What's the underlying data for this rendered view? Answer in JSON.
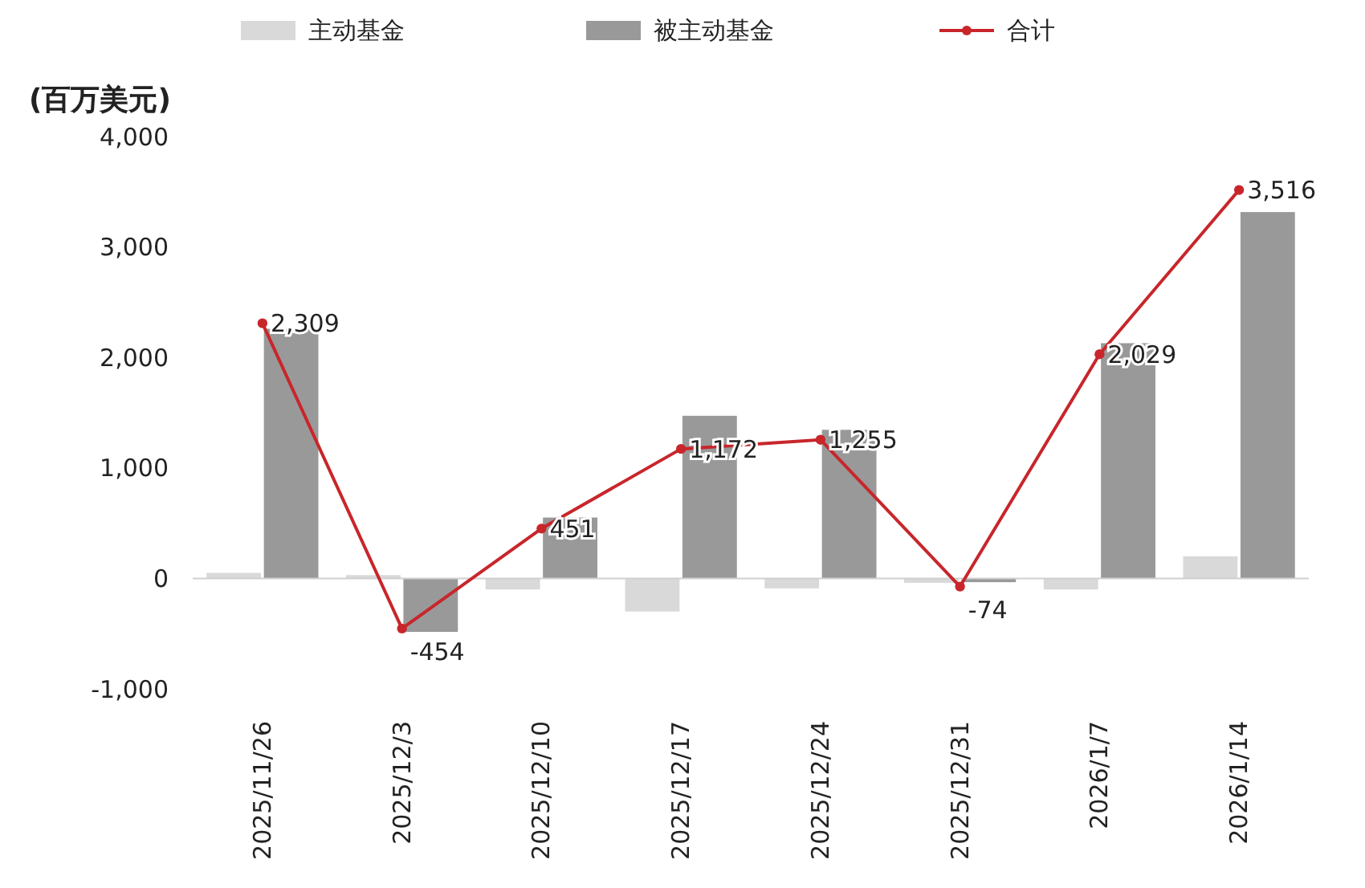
{
  "chart_data": {
    "type": "bar",
    "ylabel": "(百万美元)",
    "categories": [
      "2025/11/26",
      "2025/12/3",
      "2025/12/10",
      "2025/12/17",
      "2025/12/24",
      "2025/12/31",
      "2026/1/7",
      "2026/1/14"
    ],
    "series": [
      {
        "name": "主动基金",
        "color": "#d9d9d9",
        "values": [
          50,
          30,
          -100,
          -300,
          -90,
          -40,
          -100,
          200
        ]
      },
      {
        "name": "被主动基金",
        "color": "#999999",
        "values": [
          2260,
          -484,
          551,
          1472,
          1345,
          -34,
          2129,
          3316
        ]
      },
      {
        "name": "合计",
        "type": "line",
        "color": "#c8262b",
        "values": [
          2309,
          -454,
          451,
          1172,
          1255,
          -74,
          2029,
          3516
        ],
        "value_labels": [
          "2,309",
          "-454",
          "451",
          "1,172",
          "1,255",
          "-74",
          "2,029",
          "3,516"
        ]
      }
    ],
    "ylim": [
      -1000,
      4000
    ],
    "yticks": [
      {
        "value": -1000,
        "label": "-1,000"
      },
      0,
      {
        "value": 1000,
        "label": "1,000"
      },
      {
        "value": 2000,
        "label": "2,000"
      },
      {
        "value": 3000,
        "label": "3,000"
      },
      {
        "value": 4000,
        "label": "4,000"
      }
    ],
    "legend": "top",
    "marker": "circle",
    "line_style": "solid"
  }
}
